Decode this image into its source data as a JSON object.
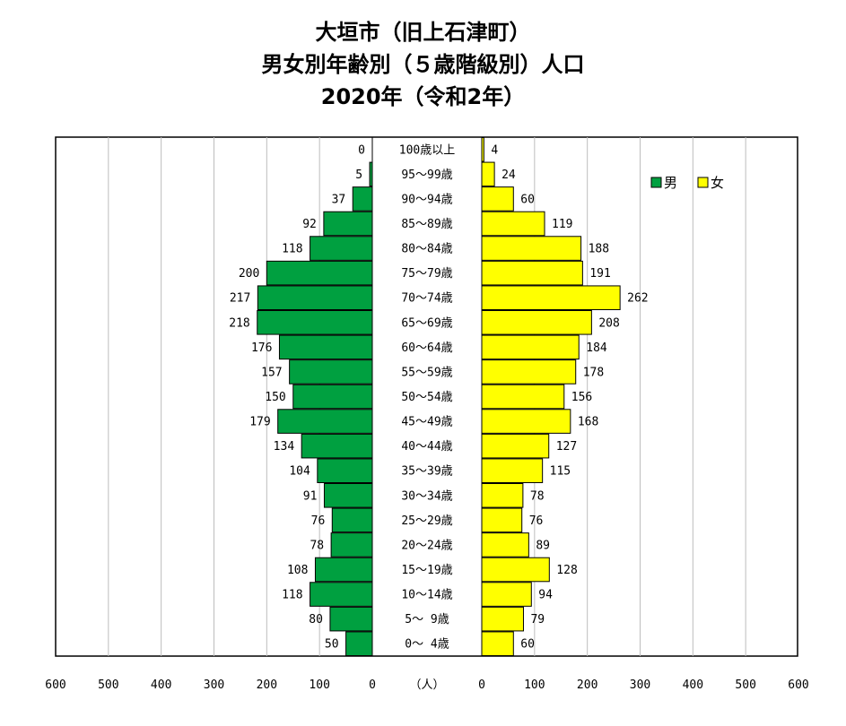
{
  "title": {
    "line1": "大垣市（旧上石津町）",
    "line2": "男女別年齢別（５歳階級別）人口",
    "line3": "2020年（令和2年）"
  },
  "chart_data": {
    "type": "bar",
    "orientation": "horizontal-pyramid",
    "categories": [
      "100歳以上",
      "95～99歳",
      "90～94歳",
      "85～89歳",
      "80～84歳",
      "75～79歳",
      "70～74歳",
      "65～69歳",
      "60～64歳",
      "55～59歳",
      "50～54歳",
      "45～49歳",
      "40～44歳",
      "35～39歳",
      "30～34歳",
      "25～29歳",
      "20～24歳",
      "15～19歳",
      "10～14歳",
      "5～ 9歳",
      "0～ 4歳"
    ],
    "series": [
      {
        "name": "男",
        "color": "#00a040",
        "values": [
          0,
          5,
          37,
          92,
          118,
          200,
          217,
          218,
          176,
          157,
          150,
          179,
          134,
          104,
          91,
          76,
          78,
          108,
          118,
          80,
          50
        ]
      },
      {
        "name": "女",
        "color": "#ffff00",
        "values": [
          4,
          24,
          60,
          119,
          188,
          191,
          262,
          208,
          184,
          178,
          156,
          168,
          127,
          115,
          78,
          76,
          89,
          128,
          94,
          79,
          60
        ]
      }
    ],
    "xlim": [
      0,
      600
    ],
    "ticks": [
      600,
      500,
      400,
      300,
      200,
      100,
      0
    ],
    "right_ticks": [
      0,
      100,
      200,
      300,
      400,
      500,
      600
    ],
    "unit_label": "（人）",
    "legend_position": "top-right",
    "grid": true
  }
}
